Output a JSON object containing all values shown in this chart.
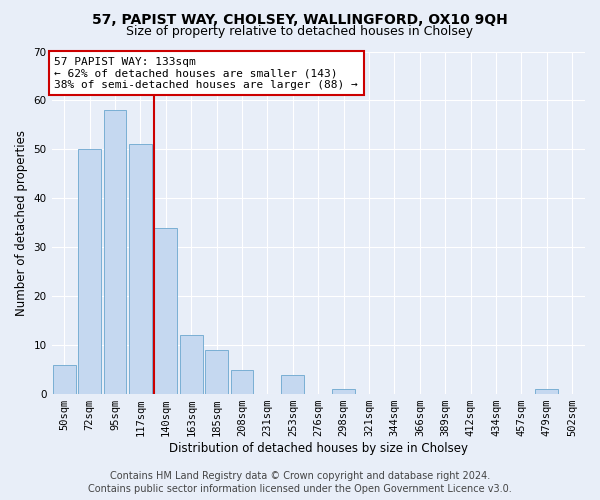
{
  "title": "57, PAPIST WAY, CHOLSEY, WALLINGFORD, OX10 9QH",
  "subtitle": "Size of property relative to detached houses in Cholsey",
  "xlabel": "Distribution of detached houses by size in Cholsey",
  "ylabel": "Number of detached properties",
  "categories": [
    "50sqm",
    "72sqm",
    "95sqm",
    "117sqm",
    "140sqm",
    "163sqm",
    "185sqm",
    "208sqm",
    "231sqm",
    "253sqm",
    "276sqm",
    "298sqm",
    "321sqm",
    "344sqm",
    "366sqm",
    "389sqm",
    "412sqm",
    "434sqm",
    "457sqm",
    "479sqm",
    "502sqm"
  ],
  "values": [
    6,
    50,
    58,
    51,
    34,
    12,
    9,
    5,
    0,
    4,
    0,
    1,
    0,
    0,
    0,
    0,
    0,
    0,
    0,
    1,
    0
  ],
  "bar_color": "#c5d8f0",
  "bar_edge_color": "#7aafd4",
  "vline_color": "#cc0000",
  "ylim": [
    0,
    70
  ],
  "yticks": [
    0,
    10,
    20,
    30,
    40,
    50,
    60,
    70
  ],
  "annotation_text": "57 PAPIST WAY: 133sqm\n← 62% of detached houses are smaller (143)\n38% of semi-detached houses are larger (88) →",
  "annotation_box_facecolor": "#ffffff",
  "annotation_box_edgecolor": "#cc0000",
  "footer_line1": "Contains HM Land Registry data © Crown copyright and database right 2024.",
  "footer_line2": "Contains public sector information licensed under the Open Government Licence v3.0.",
  "background_color": "#e8eef8",
  "plot_bg_color": "#e8eef8",
  "grid_color": "#ffffff",
  "title_fontsize": 10,
  "subtitle_fontsize": 9,
  "axis_label_fontsize": 8.5,
  "tick_fontsize": 7.5,
  "annotation_fontsize": 8,
  "footer_fontsize": 7
}
